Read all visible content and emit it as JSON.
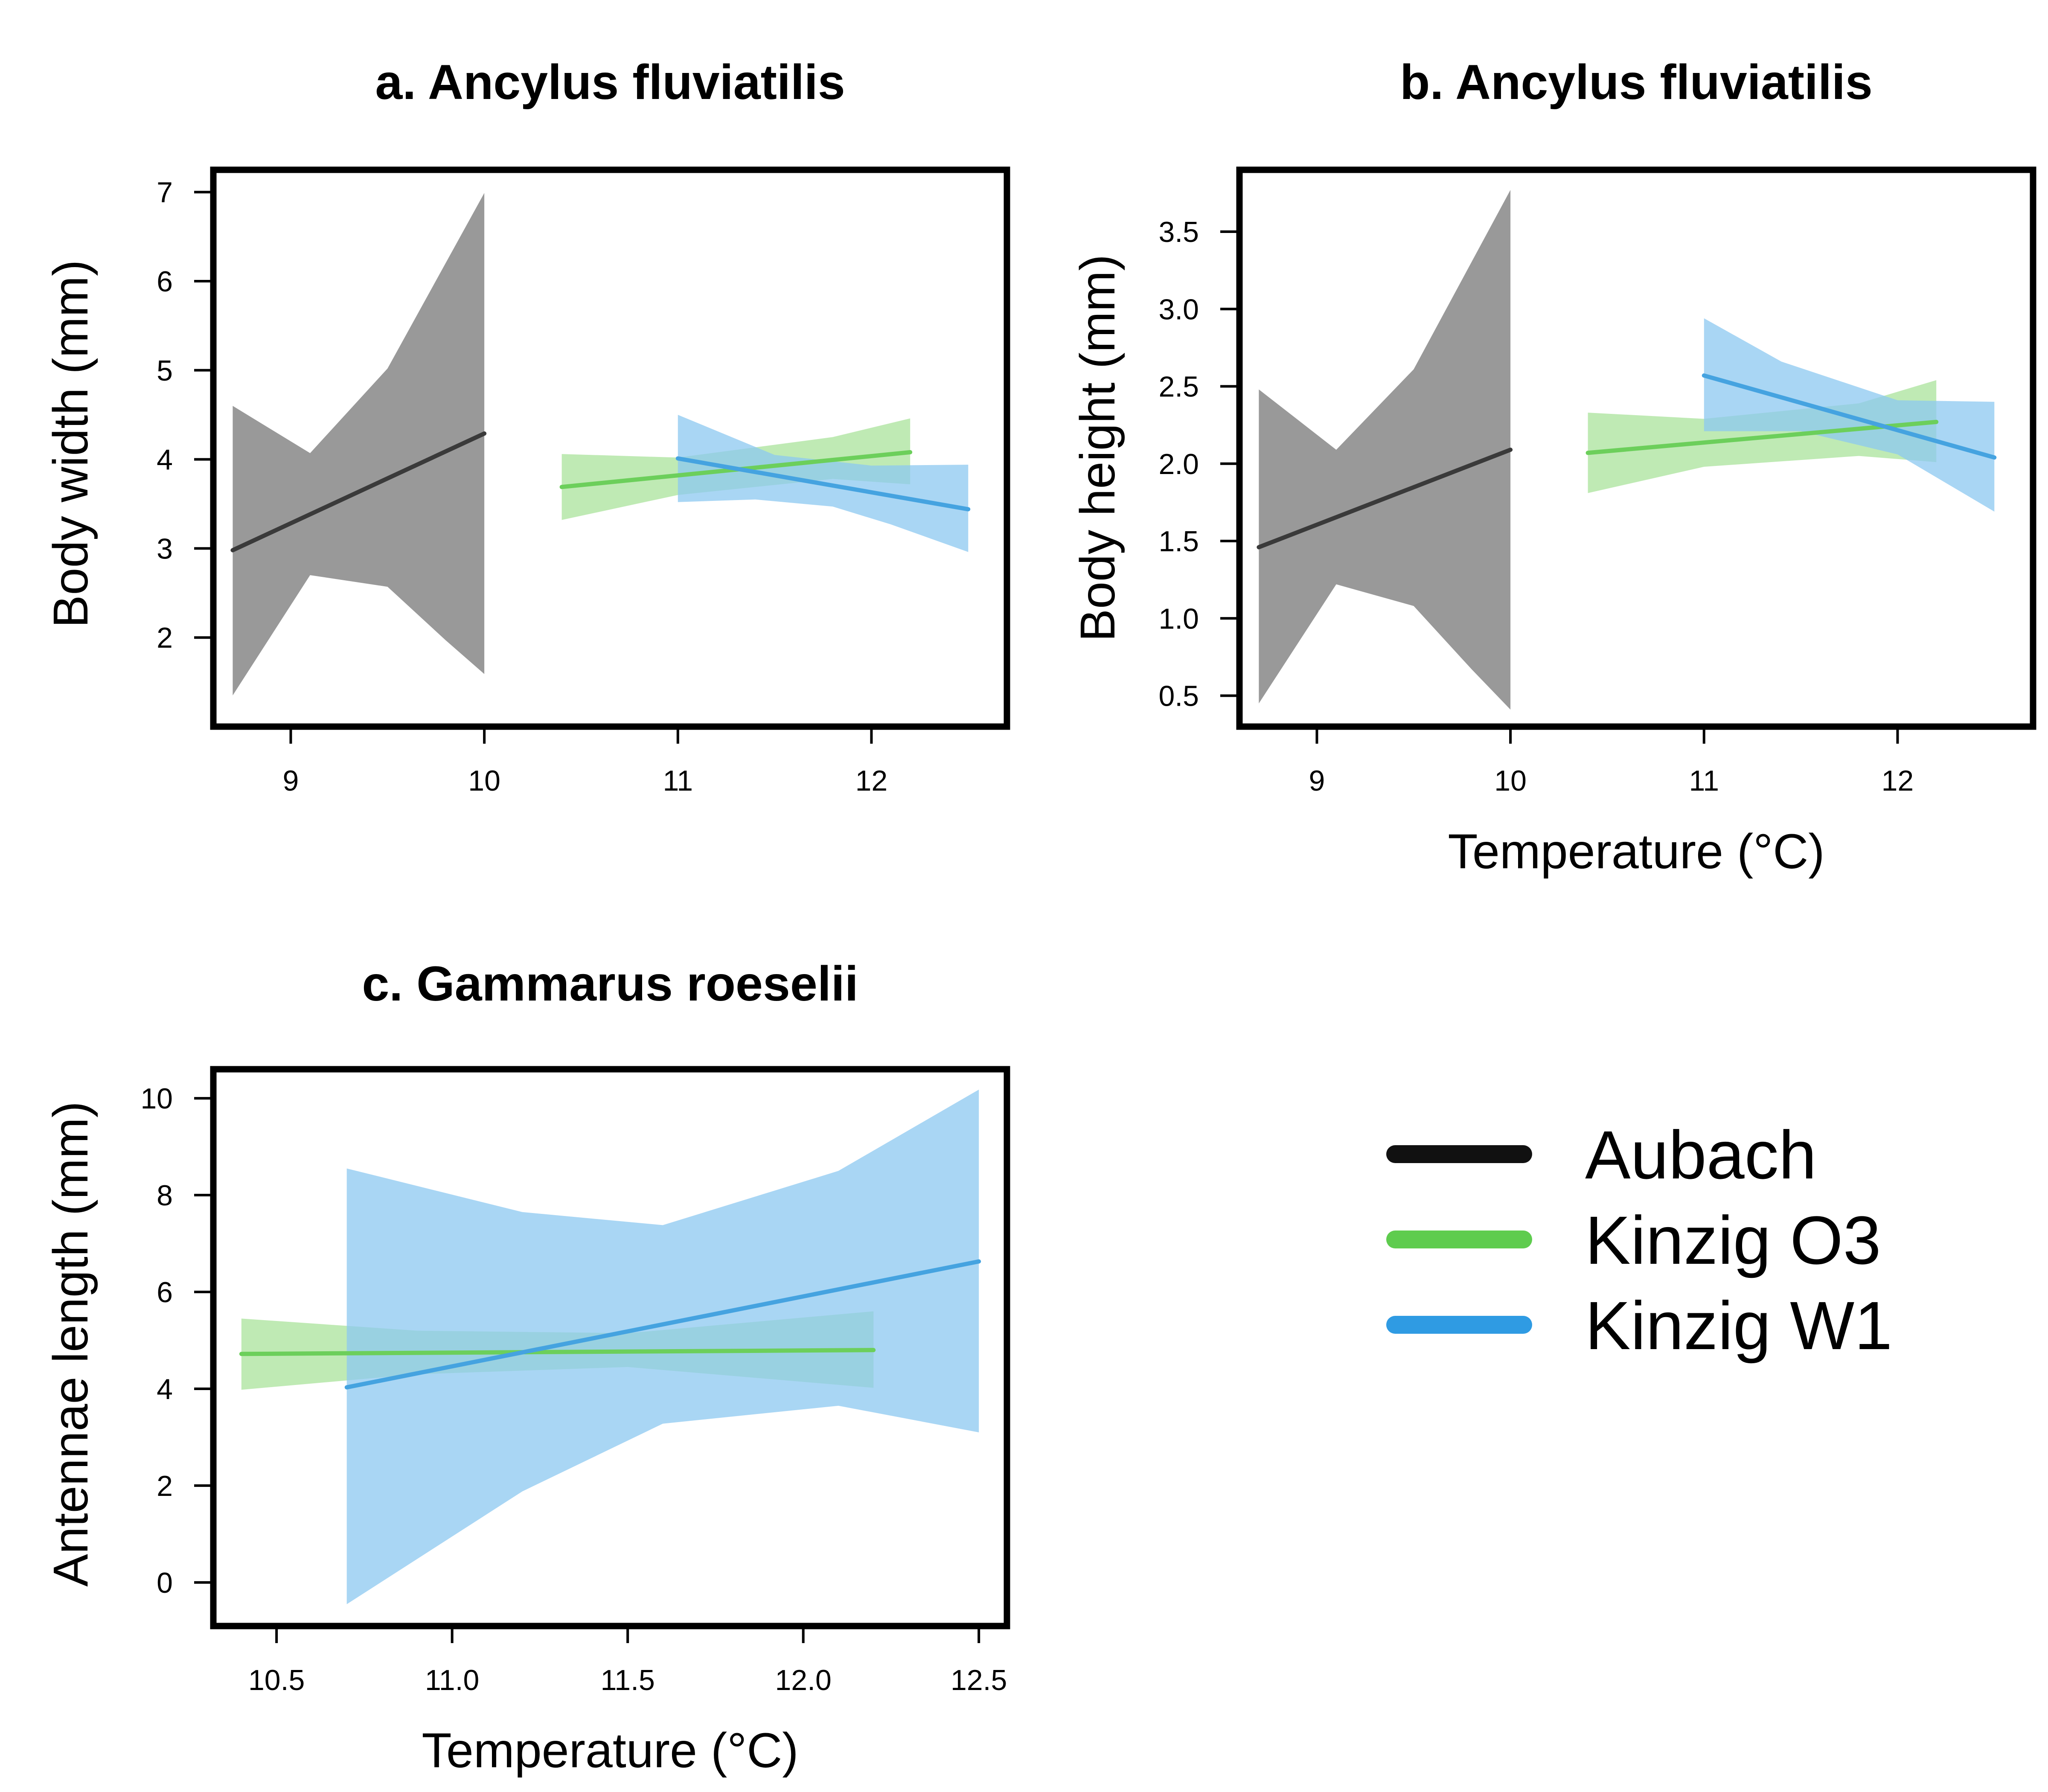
{
  "colors": {
    "Aubach": {
      "line": "#3a3a3a",
      "band": "#999999",
      "band_opacity": 1.0
    },
    "Kinzig O3": {
      "line": "#6ccf5b",
      "band": "#a9e39b",
      "band_opacity": 0.75
    },
    "Kinzig W1": {
      "line": "#45a3e0",
      "band": "#8cc8f0",
      "band_opacity": 0.75
    },
    "legend": {
      "Aubach": "#111111",
      "Kinzig O3": "#5ecc4e",
      "Kinzig W1": "#2f9be3"
    }
  },
  "legend": {
    "items": [
      "Aubach",
      "Kinzig O3",
      "Kinzig W1"
    ]
  },
  "chart_data": [
    {
      "id": "a",
      "type": "line",
      "title": "a. Ancylus fluviatilis",
      "xlabel": "",
      "ylabel": "Body width (mm)",
      "xlim": [
        8.6,
        12.7
      ],
      "ylim": [
        1.0,
        7.25
      ],
      "xticks": [
        9,
        10,
        11,
        12
      ],
      "xtick_labels": [
        "9",
        "10",
        "11",
        "12"
      ],
      "yticks": [
        2,
        3,
        4,
        5,
        6,
        7
      ],
      "ytick_labels": [
        "2",
        "3",
        "4",
        "5",
        "6",
        "7"
      ],
      "series": [
        {
          "name": "Aubach",
          "line": [
            [
              8.7,
              2.98
            ],
            [
              10.0,
              4.29
            ]
          ],
          "ci_upper": [
            [
              8.7,
              4.6
            ],
            [
              9.1,
              4.07
            ],
            [
              9.5,
              5.02
            ],
            [
              10.0,
              6.99
            ]
          ],
          "ci_lower": [
            [
              8.7,
              1.35
            ],
            [
              9.1,
              2.7
            ],
            [
              9.5,
              2.57
            ],
            [
              9.8,
              1.97
            ],
            [
              10.0,
              1.59
            ]
          ]
        },
        {
          "name": "Kinzig O3",
          "line": [
            [
              10.4,
              3.69
            ],
            [
              12.2,
              4.08
            ]
          ],
          "ci_upper": [
            [
              10.4,
              4.06
            ],
            [
              11.0,
              4.02
            ],
            [
              11.8,
              4.25
            ],
            [
              12.2,
              4.46
            ]
          ],
          "ci_lower": [
            [
              10.4,
              3.32
            ],
            [
              11.0,
              3.6
            ],
            [
              11.8,
              3.78
            ],
            [
              12.2,
              3.72
            ]
          ]
        },
        {
          "name": "Kinzig W1",
          "line": [
            [
              11.0,
              4.01
            ],
            [
              12.5,
              3.44
            ]
          ],
          "ci_upper": [
            [
              11.0,
              4.5
            ],
            [
              11.5,
              4.05
            ],
            [
              12.0,
              3.93
            ],
            [
              12.5,
              3.94
            ]
          ],
          "ci_lower": [
            [
              11.0,
              3.52
            ],
            [
              11.4,
              3.55
            ],
            [
              11.8,
              3.47
            ],
            [
              12.1,
              3.27
            ],
            [
              12.5,
              2.96
            ]
          ]
        }
      ]
    },
    {
      "id": "b",
      "type": "line",
      "title": "b. Ancylus fluviatilis",
      "xlabel": "Temperature (°C)",
      "ylabel": "Body height (mm)",
      "xlim": [
        8.6,
        12.7
      ],
      "ylim": [
        0.3,
        3.9
      ],
      "xticks": [
        9,
        10,
        11,
        12
      ],
      "xtick_labels": [
        "9",
        "10",
        "11",
        "12"
      ],
      "yticks": [
        0.5,
        1.0,
        1.5,
        2.0,
        2.5,
        3.0,
        3.5
      ],
      "ytick_labels": [
        "0.5",
        "1.0",
        "1.5",
        "2.0",
        "2.5",
        "3.0",
        "3.5"
      ],
      "series": [
        {
          "name": "Aubach",
          "line": [
            [
              8.7,
              1.46
            ],
            [
              10.0,
              2.09
            ]
          ],
          "ci_upper": [
            [
              8.7,
              2.48
            ],
            [
              9.1,
              2.09
            ],
            [
              9.5,
              2.61
            ],
            [
              10.0,
              3.77
            ]
          ],
          "ci_lower": [
            [
              8.7,
              0.45
            ],
            [
              9.1,
              1.22
            ],
            [
              9.5,
              1.08
            ],
            [
              9.8,
              0.67
            ],
            [
              10.0,
              0.41
            ]
          ]
        },
        {
          "name": "Kinzig O3",
          "line": [
            [
              10.4,
              2.07
            ],
            [
              12.2,
              2.27
            ]
          ],
          "ci_upper": [
            [
              10.4,
              2.33
            ],
            [
              11.0,
              2.29
            ],
            [
              11.8,
              2.39
            ],
            [
              12.2,
              2.54
            ]
          ],
          "ci_lower": [
            [
              10.4,
              1.81
            ],
            [
              11.0,
              1.98
            ],
            [
              11.8,
              2.05
            ],
            [
              12.2,
              2.01
            ]
          ]
        },
        {
          "name": "Kinzig W1",
          "line": [
            [
              11.0,
              2.57
            ],
            [
              12.5,
              2.04
            ]
          ],
          "ci_upper": [
            [
              11.0,
              2.94
            ],
            [
              11.4,
              2.66
            ],
            [
              12.0,
              2.41
            ],
            [
              12.5,
              2.4
            ]
          ],
          "ci_lower": [
            [
              11.0,
              2.21
            ],
            [
              11.5,
              2.21
            ],
            [
              12.0,
              2.06
            ],
            [
              12.5,
              1.69
            ]
          ]
        }
      ]
    },
    {
      "id": "c",
      "type": "line",
      "title": "c. Gammarus roeselii",
      "xlabel": "Temperature (°C)",
      "ylabel": "Antennae length (mm)",
      "xlim": [
        10.32,
        12.58
      ],
      "ylim": [
        -0.9,
        10.6
      ],
      "xticks": [
        10.5,
        11.0,
        11.5,
        12.0,
        12.5
      ],
      "xtick_labels": [
        "10.5",
        "11.0",
        "11.5",
        "12.0",
        "12.5"
      ],
      "yticks": [
        0,
        2,
        4,
        6,
        8,
        10
      ],
      "ytick_labels": [
        "0",
        "2",
        "4",
        "6",
        "8",
        "10"
      ],
      "series": [
        {
          "name": "Kinzig O3",
          "line": [
            [
              10.4,
              4.72
            ],
            [
              12.2,
              4.8
            ]
          ],
          "ci_upper": [
            [
              10.4,
              5.45
            ],
            [
              10.9,
              5.2
            ],
            [
              11.5,
              5.15
            ],
            [
              12.2,
              5.6
            ]
          ],
          "ci_lower": [
            [
              10.4,
              3.98
            ],
            [
              10.9,
              4.3
            ],
            [
              11.5,
              4.45
            ],
            [
              12.2,
              4.02
            ]
          ]
        },
        {
          "name": "Kinzig W1",
          "line": [
            [
              10.7,
              4.03
            ],
            [
              12.5,
              6.63
            ]
          ],
          "ci_upper": [
            [
              10.7,
              8.55
            ],
            [
              11.2,
              7.65
            ],
            [
              11.6,
              7.38
            ],
            [
              12.1,
              8.5
            ],
            [
              12.5,
              10.18
            ]
          ],
          "ci_lower": [
            [
              10.7,
              -0.45
            ],
            [
              11.2,
              1.88
            ],
            [
              11.6,
              3.28
            ],
            [
              12.1,
              3.65
            ],
            [
              12.5,
              3.1
            ]
          ]
        }
      ]
    }
  ]
}
